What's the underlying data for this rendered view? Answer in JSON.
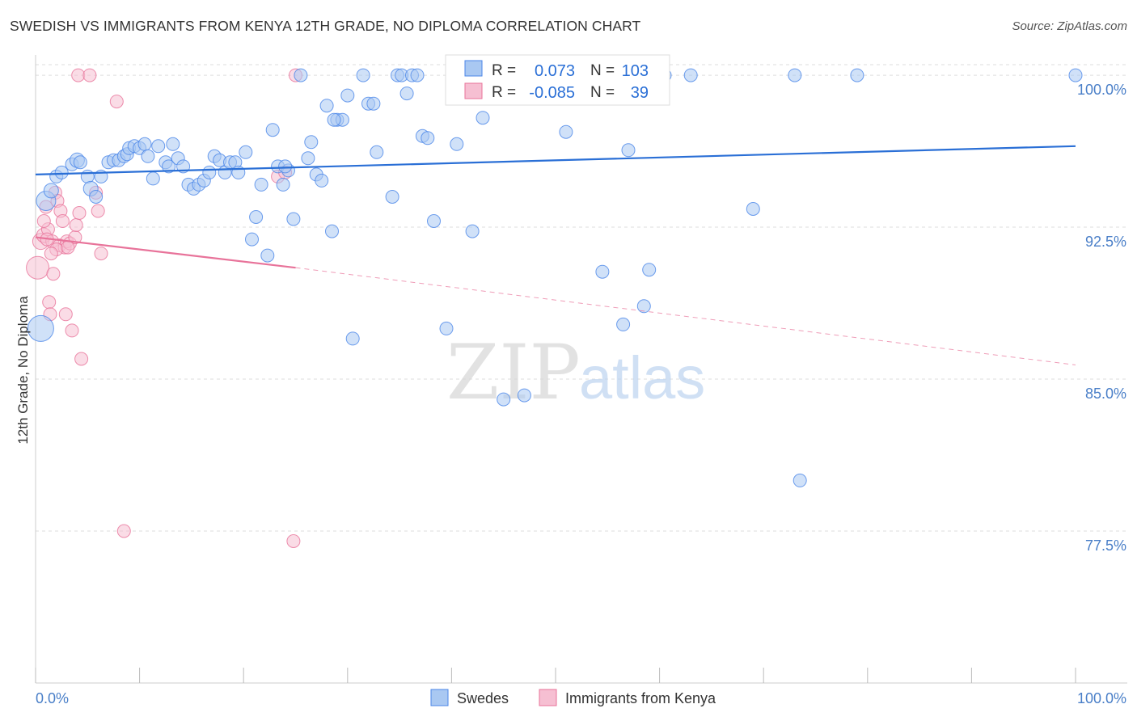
{
  "title": "SWEDISH VS IMMIGRANTS FROM KENYA 12TH GRADE, NO DIPLOMA CORRELATION CHART",
  "source": "Source: ZipAtlas.com",
  "colors": {
    "blue": "#4a86e8",
    "blue_fill": "#a9c8f2",
    "pink": "#e8739a",
    "pink_fill": "#f6bfd2",
    "grid": "#dddddd",
    "axis_label": "#4a7fc8"
  },
  "watermark": {
    "zip": "ZIP",
    "atlas": "atlas"
  },
  "chart_data": {
    "type": "scatter",
    "xlabel": "",
    "ylabel": "12th Grade, No Diploma",
    "xlim": [
      0,
      100
    ],
    "ylim": [
      70.0,
      101.0
    ],
    "x_tick_labels": [
      "0.0%",
      "100.0%"
    ],
    "y_ticks": [
      100.0,
      92.5,
      85.0,
      77.5
    ],
    "y_tick_labels": [
      "100.0%",
      "92.5%",
      "85.0%",
      "77.5%"
    ],
    "grid": true,
    "legend_position": "bottom-center",
    "stats_box": [
      {
        "r_key": "R =",
        "r_value": "0.073",
        "n_key": "N =",
        "n_value": "103",
        "color": "blue"
      },
      {
        "r_key": "R =",
        "r_value": "-0.085",
        "n_key": "N =",
        "n_value": "39",
        "color": "pink"
      }
    ],
    "series": [
      {
        "name": "Swedes",
        "color": "blue",
        "trend": {
          "x": [
            0,
            100
          ],
          "y": [
            95.1,
            96.5
          ],
          "dashed": false
        },
        "points": [
          [
            0.5,
            87.5,
            16
          ],
          [
            1,
            93.8,
            12
          ],
          [
            1.5,
            94.3,
            9
          ],
          [
            2,
            95.0,
            8
          ],
          [
            2.5,
            95.2,
            8
          ],
          [
            3.5,
            95.6,
            8
          ],
          [
            4,
            95.8,
            9
          ],
          [
            4.3,
            95.7,
            8
          ],
          [
            5,
            95.0,
            8
          ],
          [
            5.3,
            94.4,
            9
          ],
          [
            5.8,
            94.0,
            8
          ],
          [
            6.3,
            95.0,
            8
          ],
          [
            7,
            95.7,
            8
          ],
          [
            7.5,
            95.8,
            8
          ],
          [
            8,
            95.8,
            8
          ],
          [
            8.5,
            96.0,
            8
          ],
          [
            8.8,
            96.1,
            8
          ],
          [
            9.0,
            96.4,
            8
          ],
          [
            9.5,
            96.5,
            8
          ],
          [
            10,
            96.4,
            8
          ],
          [
            10.5,
            96.6,
            8
          ],
          [
            10.8,
            96.0,
            8
          ],
          [
            11.3,
            94.9,
            8
          ],
          [
            11.8,
            96.5,
            8
          ],
          [
            12.5,
            95.7,
            8
          ],
          [
            12.8,
            95.5,
            8
          ],
          [
            13.2,
            96.6,
            8
          ],
          [
            13.7,
            95.9,
            8
          ],
          [
            14.2,
            95.5,
            8
          ],
          [
            14.7,
            94.6,
            8
          ],
          [
            15.2,
            94.4,
            8
          ],
          [
            15.7,
            94.6,
            8
          ],
          [
            16.2,
            94.8,
            8
          ],
          [
            16.7,
            95.2,
            8
          ],
          [
            17.2,
            96.0,
            8
          ],
          [
            17.7,
            95.8,
            8
          ],
          [
            18.2,
            95.2,
            8
          ],
          [
            18.7,
            95.7,
            8
          ],
          [
            19.2,
            95.7,
            8
          ],
          [
            19.5,
            95.2,
            8
          ],
          [
            20.2,
            96.2,
            8
          ],
          [
            20.8,
            91.9,
            8
          ],
          [
            21.2,
            93.0,
            8
          ],
          [
            21.7,
            94.6,
            8
          ],
          [
            22.3,
            91.1,
            8
          ],
          [
            22.8,
            97.3,
            8
          ],
          [
            23.3,
            95.5,
            8
          ],
          [
            23.8,
            94.6,
            8
          ],
          [
            24.3,
            95.3,
            8
          ],
          [
            24.8,
            92.9,
            8
          ],
          [
            25.5,
            100,
            8
          ],
          [
            26.2,
            95.9,
            8
          ],
          [
            26.5,
            96.7,
            8
          ],
          [
            27.0,
            95.1,
            8
          ],
          [
            27.5,
            94.8,
            8
          ],
          [
            28.0,
            98.5,
            8
          ],
          [
            28.5,
            92.3,
            8
          ],
          [
            29.0,
            97.8,
            8
          ],
          [
            29.5,
            97.8,
            8
          ],
          [
            30.0,
            99.0,
            8
          ],
          [
            30.5,
            87.0,
            8
          ],
          [
            31.5,
            100,
            8
          ],
          [
            32.0,
            98.6,
            8
          ],
          [
            32.5,
            98.6,
            8
          ],
          [
            32.8,
            96.2,
            8
          ],
          [
            34.3,
            94.0,
            8
          ],
          [
            34.8,
            100,
            8
          ],
          [
            35.2,
            100,
            8
          ],
          [
            35.7,
            99.1,
            8
          ],
          [
            36.2,
            100,
            8
          ],
          [
            36.7,
            100,
            8
          ],
          [
            37.2,
            97.0,
            8
          ],
          [
            37.7,
            96.9,
            8
          ],
          [
            38.3,
            92.8,
            8
          ],
          [
            39.5,
            87.5,
            8
          ],
          [
            40.5,
            96.6,
            8
          ],
          [
            41.0,
            100,
            8
          ],
          [
            42.0,
            92.3,
            8
          ],
          [
            42.5,
            100,
            8
          ],
          [
            43.0,
            97.9,
            8
          ],
          [
            43.5,
            100,
            8
          ],
          [
            45.0,
            84.0,
            8
          ],
          [
            46.5,
            100,
            8
          ],
          [
            47.0,
            84.2,
            8
          ],
          [
            48.5,
            100,
            8
          ],
          [
            50.5,
            100,
            8
          ],
          [
            51.0,
            97.2,
            8
          ],
          [
            53.0,
            100,
            8
          ],
          [
            54.5,
            90.3,
            8
          ],
          [
            56.0,
            100,
            8
          ],
          [
            56.5,
            87.7,
            8
          ],
          [
            57.0,
            96.3,
            8
          ],
          [
            58.5,
            88.6,
            8
          ],
          [
            59.0,
            90.4,
            8
          ],
          [
            60.5,
            100,
            8
          ],
          [
            63.0,
            100,
            8
          ],
          [
            69.0,
            93.4,
            8
          ],
          [
            73.0,
            100,
            8
          ],
          [
            73.5,
            80.0,
            8
          ],
          [
            79.0,
            100,
            8
          ],
          [
            100.0,
            100,
            8
          ],
          [
            40.5,
            100,
            8
          ],
          [
            28.7,
            97.8,
            8
          ],
          [
            24.0,
            95.5,
            8
          ]
        ]
      },
      {
        "name": "Immigrants from Kenya",
        "color": "pink",
        "trend": {
          "x": [
            0,
            25
          ],
          "y": [
            92.0,
            90.5
          ],
          "dashed_extension": {
            "x": [
              25,
              100
            ],
            "y": [
              90.5,
              85.7
            ]
          }
        },
        "points": [
          [
            0.2,
            90.5,
            14
          ],
          [
            0.5,
            91.8,
            10
          ],
          [
            0.8,
            92.1,
            9
          ],
          [
            1.0,
            93.5,
            8
          ],
          [
            1.2,
            92.4,
            8
          ],
          [
            1.3,
            88.8,
            8
          ],
          [
            1.4,
            88.2,
            8
          ],
          [
            1.6,
            91.8,
            8
          ],
          [
            1.7,
            90.2,
            8
          ],
          [
            1.9,
            94.2,
            8
          ],
          [
            2.1,
            93.8,
            8
          ],
          [
            2.3,
            91.6,
            8
          ],
          [
            2.4,
            93.3,
            8
          ],
          [
            2.6,
            92.8,
            8
          ],
          [
            2.8,
            91.5,
            8
          ],
          [
            2.9,
            88.2,
            8
          ],
          [
            3.0,
            91.8,
            8
          ],
          [
            3.3,
            91.7,
            8
          ],
          [
            3.5,
            87.4,
            8
          ],
          [
            3.8,
            92.0,
            8
          ],
          [
            3.9,
            92.6,
            8
          ],
          [
            4.2,
            93.2,
            8
          ],
          [
            4.4,
            86.0,
            8
          ],
          [
            4.1,
            100,
            8
          ],
          [
            5.2,
            100,
            8
          ],
          [
            5.8,
            94.2,
            8
          ],
          [
            6.0,
            93.3,
            8
          ],
          [
            6.3,
            91.2,
            8
          ],
          [
            7.8,
            98.7,
            8
          ],
          [
            8.5,
            77.5,
            8
          ],
          [
            23.3,
            95.0,
            8
          ],
          [
            24.0,
            95.2,
            8
          ],
          [
            24.8,
            77.0,
            8
          ],
          [
            25.0,
            100,
            8
          ],
          [
            0.8,
            92.8,
            8
          ],
          [
            1.1,
            91.9,
            8
          ],
          [
            2.0,
            91.4,
            8
          ],
          [
            3.1,
            91.5,
            8
          ],
          [
            1.5,
            91.2,
            8
          ]
        ]
      }
    ]
  }
}
